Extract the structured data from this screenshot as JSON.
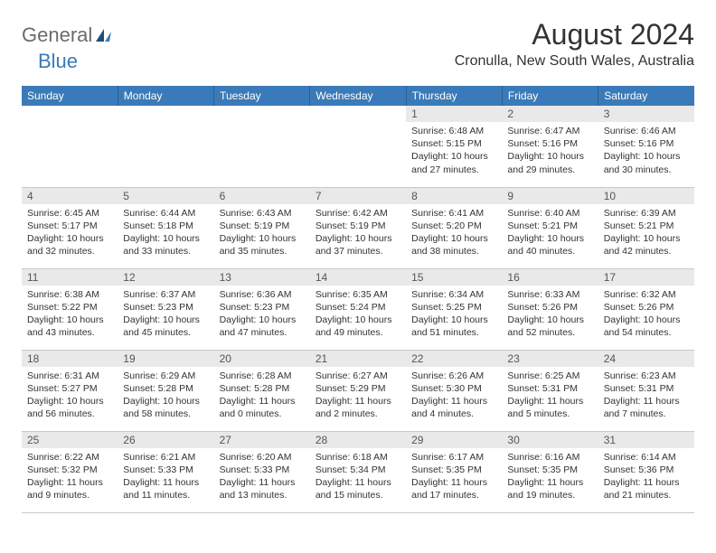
{
  "logo": {
    "general": "General",
    "blue": "Blue"
  },
  "title": "August 2024",
  "location": "Cronulla, New South Wales, Australia",
  "colors": {
    "header_bg": "#3a7ab8",
    "header_text": "#ffffff",
    "daynum_bg": "#e9e9e9",
    "body_text": "#333333",
    "logo_gray": "#6b6b6b",
    "logo_blue": "#3a7ab8",
    "border": "#c8c8c8"
  },
  "weekdays": [
    "Sunday",
    "Monday",
    "Tuesday",
    "Wednesday",
    "Thursday",
    "Friday",
    "Saturday"
  ],
  "weeks": [
    [
      null,
      null,
      null,
      null,
      {
        "num": "1",
        "sunrise": "Sunrise: 6:48 AM",
        "sunset": "Sunset: 5:15 PM",
        "daylight": "Daylight: 10 hours and 27 minutes."
      },
      {
        "num": "2",
        "sunrise": "Sunrise: 6:47 AM",
        "sunset": "Sunset: 5:16 PM",
        "daylight": "Daylight: 10 hours and 29 minutes."
      },
      {
        "num": "3",
        "sunrise": "Sunrise: 6:46 AM",
        "sunset": "Sunset: 5:16 PM",
        "daylight": "Daylight: 10 hours and 30 minutes."
      }
    ],
    [
      {
        "num": "4",
        "sunrise": "Sunrise: 6:45 AM",
        "sunset": "Sunset: 5:17 PM",
        "daylight": "Daylight: 10 hours and 32 minutes."
      },
      {
        "num": "5",
        "sunrise": "Sunrise: 6:44 AM",
        "sunset": "Sunset: 5:18 PM",
        "daylight": "Daylight: 10 hours and 33 minutes."
      },
      {
        "num": "6",
        "sunrise": "Sunrise: 6:43 AM",
        "sunset": "Sunset: 5:19 PM",
        "daylight": "Daylight: 10 hours and 35 minutes."
      },
      {
        "num": "7",
        "sunrise": "Sunrise: 6:42 AM",
        "sunset": "Sunset: 5:19 PM",
        "daylight": "Daylight: 10 hours and 37 minutes."
      },
      {
        "num": "8",
        "sunrise": "Sunrise: 6:41 AM",
        "sunset": "Sunset: 5:20 PM",
        "daylight": "Daylight: 10 hours and 38 minutes."
      },
      {
        "num": "9",
        "sunrise": "Sunrise: 6:40 AM",
        "sunset": "Sunset: 5:21 PM",
        "daylight": "Daylight: 10 hours and 40 minutes."
      },
      {
        "num": "10",
        "sunrise": "Sunrise: 6:39 AM",
        "sunset": "Sunset: 5:21 PM",
        "daylight": "Daylight: 10 hours and 42 minutes."
      }
    ],
    [
      {
        "num": "11",
        "sunrise": "Sunrise: 6:38 AM",
        "sunset": "Sunset: 5:22 PM",
        "daylight": "Daylight: 10 hours and 43 minutes."
      },
      {
        "num": "12",
        "sunrise": "Sunrise: 6:37 AM",
        "sunset": "Sunset: 5:23 PM",
        "daylight": "Daylight: 10 hours and 45 minutes."
      },
      {
        "num": "13",
        "sunrise": "Sunrise: 6:36 AM",
        "sunset": "Sunset: 5:23 PM",
        "daylight": "Daylight: 10 hours and 47 minutes."
      },
      {
        "num": "14",
        "sunrise": "Sunrise: 6:35 AM",
        "sunset": "Sunset: 5:24 PM",
        "daylight": "Daylight: 10 hours and 49 minutes."
      },
      {
        "num": "15",
        "sunrise": "Sunrise: 6:34 AM",
        "sunset": "Sunset: 5:25 PM",
        "daylight": "Daylight: 10 hours and 51 minutes."
      },
      {
        "num": "16",
        "sunrise": "Sunrise: 6:33 AM",
        "sunset": "Sunset: 5:26 PM",
        "daylight": "Daylight: 10 hours and 52 minutes."
      },
      {
        "num": "17",
        "sunrise": "Sunrise: 6:32 AM",
        "sunset": "Sunset: 5:26 PM",
        "daylight": "Daylight: 10 hours and 54 minutes."
      }
    ],
    [
      {
        "num": "18",
        "sunrise": "Sunrise: 6:31 AM",
        "sunset": "Sunset: 5:27 PM",
        "daylight": "Daylight: 10 hours and 56 minutes."
      },
      {
        "num": "19",
        "sunrise": "Sunrise: 6:29 AM",
        "sunset": "Sunset: 5:28 PM",
        "daylight": "Daylight: 10 hours and 58 minutes."
      },
      {
        "num": "20",
        "sunrise": "Sunrise: 6:28 AM",
        "sunset": "Sunset: 5:28 PM",
        "daylight": "Daylight: 11 hours and 0 minutes."
      },
      {
        "num": "21",
        "sunrise": "Sunrise: 6:27 AM",
        "sunset": "Sunset: 5:29 PM",
        "daylight": "Daylight: 11 hours and 2 minutes."
      },
      {
        "num": "22",
        "sunrise": "Sunrise: 6:26 AM",
        "sunset": "Sunset: 5:30 PM",
        "daylight": "Daylight: 11 hours and 4 minutes."
      },
      {
        "num": "23",
        "sunrise": "Sunrise: 6:25 AM",
        "sunset": "Sunset: 5:31 PM",
        "daylight": "Daylight: 11 hours and 5 minutes."
      },
      {
        "num": "24",
        "sunrise": "Sunrise: 6:23 AM",
        "sunset": "Sunset: 5:31 PM",
        "daylight": "Daylight: 11 hours and 7 minutes."
      }
    ],
    [
      {
        "num": "25",
        "sunrise": "Sunrise: 6:22 AM",
        "sunset": "Sunset: 5:32 PM",
        "daylight": "Daylight: 11 hours and 9 minutes."
      },
      {
        "num": "26",
        "sunrise": "Sunrise: 6:21 AM",
        "sunset": "Sunset: 5:33 PM",
        "daylight": "Daylight: 11 hours and 11 minutes."
      },
      {
        "num": "27",
        "sunrise": "Sunrise: 6:20 AM",
        "sunset": "Sunset: 5:33 PM",
        "daylight": "Daylight: 11 hours and 13 minutes."
      },
      {
        "num": "28",
        "sunrise": "Sunrise: 6:18 AM",
        "sunset": "Sunset: 5:34 PM",
        "daylight": "Daylight: 11 hours and 15 minutes."
      },
      {
        "num": "29",
        "sunrise": "Sunrise: 6:17 AM",
        "sunset": "Sunset: 5:35 PM",
        "daylight": "Daylight: 11 hours and 17 minutes."
      },
      {
        "num": "30",
        "sunrise": "Sunrise: 6:16 AM",
        "sunset": "Sunset: 5:35 PM",
        "daylight": "Daylight: 11 hours and 19 minutes."
      },
      {
        "num": "31",
        "sunrise": "Sunrise: 6:14 AM",
        "sunset": "Sunset: 5:36 PM",
        "daylight": "Daylight: 11 hours and 21 minutes."
      }
    ]
  ]
}
